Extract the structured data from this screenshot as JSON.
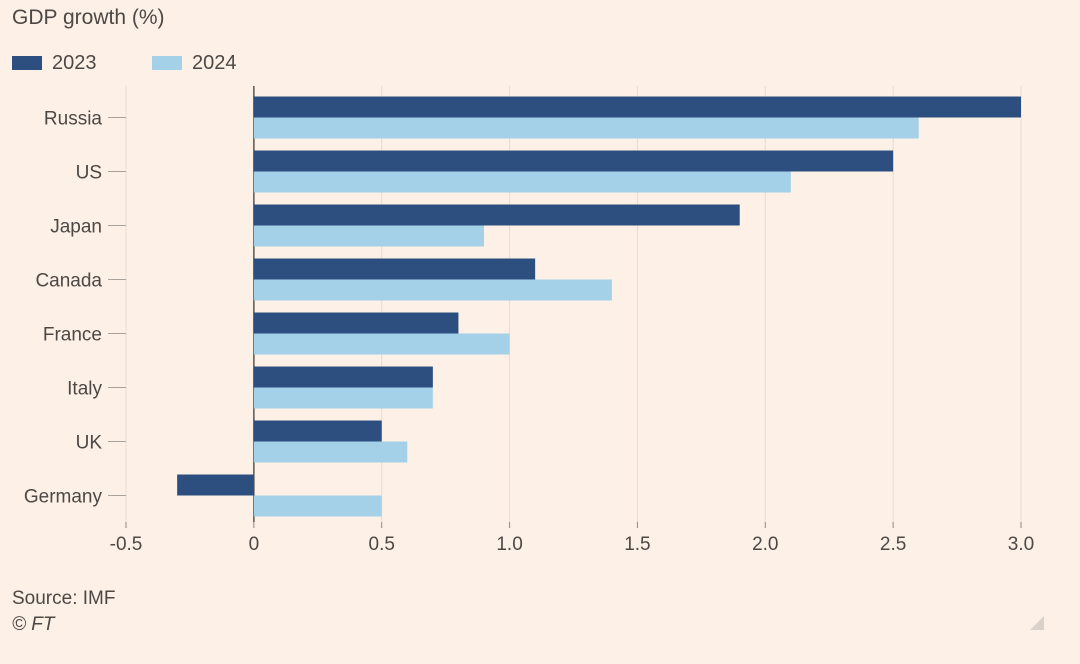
{
  "chart_data": {
    "type": "bar",
    "orientation": "horizontal",
    "title": "GDP growth (%)",
    "categories": [
      "Russia",
      "US",
      "Japan",
      "Canada",
      "France",
      "Italy",
      "UK",
      "Germany"
    ],
    "series": [
      {
        "name": "2023",
        "color": "#2c4f80",
        "values": [
          3.0,
          2.5,
          1.9,
          1.1,
          0.8,
          0.7,
          0.5,
          -0.3
        ]
      },
      {
        "name": "2024",
        "color": "#a4d1e7",
        "values": [
          2.6,
          2.1,
          0.9,
          1.4,
          1.0,
          0.7,
          0.6,
          0.5
        ]
      }
    ],
    "xlim": [
      -0.5,
      3.0
    ],
    "xticks": [
      -0.5,
      0,
      0.5,
      1.0,
      1.5,
      2.0,
      2.5,
      3.0
    ],
    "xtick_labels": [
      "-0.5",
      "0",
      "0.5",
      "1.0",
      "1.5",
      "2.0",
      "2.5",
      "3.0"
    ],
    "grid": true,
    "legend_position": "top-left"
  },
  "source": "Source: IMF",
  "credit": "© FT"
}
